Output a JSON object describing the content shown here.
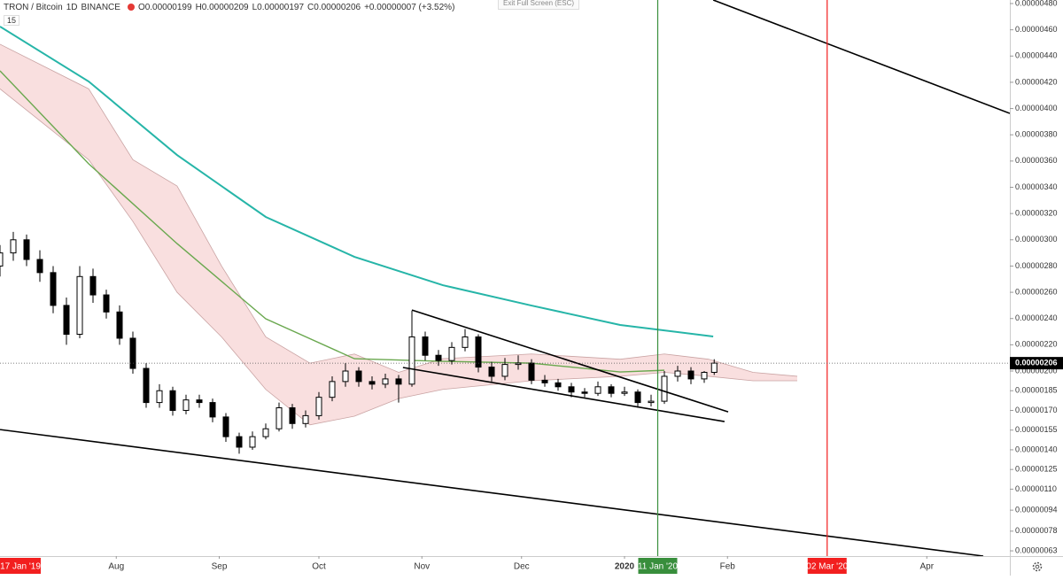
{
  "chart_data": {
    "type": "candlestick",
    "title": "TRON / Bitcoin",
    "interval": "1D",
    "exchange": "BINANCE",
    "ohlc_header": {
      "open": "O0.00000199",
      "high": "H0.00000209",
      "low": "L0.00000197",
      "close": "C0.00000206",
      "change": "+0.00000007 (+3.52%)"
    },
    "indicator_count": "15",
    "exit_button": "Exit Full Screen (ESC)",
    "left_date_label": "17 Jan '19",
    "xlim": [
      0,
      304
    ],
    "ylim": [
      5.9e-07,
      4.827e-06
    ],
    "xticks": [
      {
        "value": 35,
        "label": "Aug"
      },
      {
        "value": 66,
        "label": "Sep"
      },
      {
        "value": 96,
        "label": "Oct"
      },
      {
        "value": 127,
        "label": "Nov"
      },
      {
        "value": 157,
        "label": "Dec"
      },
      {
        "value": 188,
        "label": "2020"
      },
      {
        "value": 219,
        "label": "Feb"
      },
      {
        "value": 279,
        "label": "Apr"
      }
    ],
    "yticks": [
      {
        "value": 4.8e-06,
        "label": "0.00000480"
      },
      {
        "value": 4.6e-06,
        "label": "0.00000460"
      },
      {
        "value": 4.4e-06,
        "label": "0.00000440"
      },
      {
        "value": 4.2e-06,
        "label": "0.00000420"
      },
      {
        "value": 4e-06,
        "label": "0.00000400"
      },
      {
        "value": 3.8e-06,
        "label": "0.00000380"
      },
      {
        "value": 3.6e-06,
        "label": "0.00000360"
      },
      {
        "value": 3.4e-06,
        "label": "0.00000340"
      },
      {
        "value": 3.2e-06,
        "label": "0.00000320"
      },
      {
        "value": 3e-06,
        "label": "0.00000300"
      },
      {
        "value": 2.8e-06,
        "label": "0.00000280"
      },
      {
        "value": 2.6e-06,
        "label": "0.00000260"
      },
      {
        "value": 2.4e-06,
        "label": "0.00000240"
      },
      {
        "value": 2.2e-06,
        "label": "0.00000220"
      },
      {
        "value": 2e-06,
        "label": "0.00000200"
      },
      {
        "value": 1.85e-06,
        "label": "0.00000185"
      },
      {
        "value": 1.7e-06,
        "label": "0.00000170"
      },
      {
        "value": 1.55e-06,
        "label": "0.00000155"
      },
      {
        "value": 1.4e-06,
        "label": "0.00000140"
      },
      {
        "value": 1.25e-06,
        "label": "0.00000125"
      },
      {
        "value": 1.1e-06,
        "label": "0.00000110"
      },
      {
        "value": 9.4e-07,
        "label": "0.00000094"
      },
      {
        "value": 7.8e-07,
        "label": "0.00000078"
      },
      {
        "value": 6.3e-07,
        "label": "0.00000063"
      }
    ],
    "x": [
      0,
      4,
      8,
      12,
      16,
      20,
      24,
      28,
      32,
      36,
      40,
      44,
      48,
      52,
      56,
      60,
      64,
      68,
      72,
      76,
      80,
      84,
      88,
      92,
      96,
      100,
      104,
      108,
      112,
      116,
      120,
      124,
      128,
      132,
      136,
      140,
      144,
      148,
      152,
      156,
      160,
      164,
      168,
      172,
      176,
      180,
      184,
      188,
      192,
      196,
      200,
      204,
      208,
      212,
      215
    ],
    "open": [
      2.8e-06,
      2.9e-06,
      3e-06,
      2.85e-06,
      2.75e-06,
      2.5e-06,
      2.28e-06,
      2.72e-06,
      2.58e-06,
      2.45e-06,
      2.25e-06,
      2.02e-06,
      1.76e-06,
      1.85e-06,
      1.7e-06,
      1.78e-06,
      1.76e-06,
      1.65e-06,
      1.5e-06,
      1.42e-06,
      1.5e-06,
      1.56e-06,
      1.72e-06,
      1.6e-06,
      1.66e-06,
      1.8e-06,
      1.92e-06,
      2e-06,
      1.92e-06,
      1.9e-06,
      1.94e-06,
      1.9e-06,
      2.26e-06,
      2.12e-06,
      2.08e-06,
      2.18e-06,
      2.26e-06,
      2.03e-06,
      1.96e-06,
      2.05e-06,
      2.06e-06,
      1.93e-06,
      1.91e-06,
      1.88e-06,
      1.84e-06,
      1.83e-06,
      1.88e-06,
      1.83e-06,
      1.84e-06,
      1.76e-06,
      1.77e-06,
      1.96e-06,
      2e-06,
      1.94e-06,
      1.99e-06
    ],
    "high": [
      2.96e-06,
      3.06e-06,
      3.04e-06,
      2.92e-06,
      2.8e-06,
      2.56e-06,
      2.8e-06,
      2.78e-06,
      2.62e-06,
      2.5e-06,
      2.3e-06,
      2.06e-06,
      1.9e-06,
      1.88e-06,
      1.82e-06,
      1.82e-06,
      1.79e-06,
      1.68e-06,
      1.53e-06,
      1.54e-06,
      1.6e-06,
      1.76e-06,
      1.75e-06,
      1.7e-06,
      1.84e-06,
      1.96e-06,
      2.06e-06,
      2.03e-06,
      1.96e-06,
      1.98e-06,
      1.97e-06,
      2.46e-06,
      2.3e-06,
      2.16e-06,
      2.22e-06,
      2.32e-06,
      2.28e-06,
      2.07e-06,
      2.1e-06,
      2.12e-06,
      2.09e-06,
      1.97e-06,
      1.94e-06,
      1.91e-06,
      1.87e-06,
      1.92e-06,
      1.9e-06,
      1.88e-06,
      1.86e-06,
      1.82e-06,
      2e-06,
      2.04e-06,
      2.03e-06,
      2e-06,
      2.09e-06
    ],
    "low": [
      2.72e-06,
      2.84e-06,
      2.8e-06,
      2.68e-06,
      2.44e-06,
      2.2e-06,
      2.25e-06,
      2.52e-06,
      2.4e-06,
      2.2e-06,
      1.98e-06,
      1.72e-06,
      1.72e-06,
      1.66e-06,
      1.67e-06,
      1.72e-06,
      1.61e-06,
      1.46e-06,
      1.37e-06,
      1.4e-06,
      1.48e-06,
      1.54e-06,
      1.56e-06,
      1.57e-06,
      1.63e-06,
      1.77e-06,
      1.88e-06,
      1.88e-06,
      1.86e-06,
      1.87e-06,
      1.76e-06,
      1.88e-06,
      2.08e-06,
      2.04e-06,
      2.05e-06,
      2.15e-06,
      1.99e-06,
      1.92e-06,
      1.93e-06,
      2.01e-06,
      1.9e-06,
      1.88e-06,
      1.85e-06,
      1.8e-06,
      1.8e-06,
      1.81e-06,
      1.8e-06,
      1.81e-06,
      1.72e-06,
      1.73e-06,
      1.75e-06,
      1.92e-06,
      1.9e-06,
      1.91e-06,
      1.97e-06
    ],
    "close": [
      2.9e-06,
      3e-06,
      2.85e-06,
      2.75e-06,
      2.5e-06,
      2.28e-06,
      2.72e-06,
      2.58e-06,
      2.45e-06,
      2.25e-06,
      2.02e-06,
      1.76e-06,
      1.85e-06,
      1.7e-06,
      1.78e-06,
      1.76e-06,
      1.65e-06,
      1.5e-06,
      1.42e-06,
      1.5e-06,
      1.56e-06,
      1.72e-06,
      1.6e-06,
      1.66e-06,
      1.8e-06,
      1.92e-06,
      2e-06,
      1.92e-06,
      1.9e-06,
      1.94e-06,
      1.9e-06,
      2.26e-06,
      2.12e-06,
      2.08e-06,
      2.18e-06,
      2.26e-06,
      2.03e-06,
      1.96e-06,
      2.05e-06,
      2.06e-06,
      1.93e-06,
      1.91e-06,
      1.88e-06,
      1.84e-06,
      1.83e-06,
      1.88e-06,
      1.83e-06,
      1.84e-06,
      1.76e-06,
      1.77e-06,
      1.96e-06,
      2e-06,
      1.94e-06,
      1.99e-06,
      2.06e-06
    ],
    "up_color": "#ffffff",
    "down_color": "#000000",
    "cloud": {
      "color": "#f8d7d7",
      "edge_color": "#c9a3a3",
      "x": [
        0,
        26.7,
        40,
        53.3,
        66.7,
        80,
        93.3,
        106.7,
        120,
        133.3,
        160,
        186.7,
        200,
        213.3,
        226.7,
        240
      ],
      "upper": [
        4.49e-06,
        4.15e-06,
        3.61e-06,
        3.41e-06,
        2.8e-06,
        2.26e-06,
        2.06e-06,
        2.13e-06,
        1.99e-06,
        2.094e-06,
        2.13e-06,
        2.09e-06,
        2.13e-06,
        2.09e-06,
        1.99e-06,
        1.96e-06
      ],
      "lower": [
        4.15e-06,
        3.61e-06,
        3.14e-06,
        2.6e-06,
        2.26e-06,
        1.86e-06,
        1.59e-06,
        1.656e-06,
        1.79e-06,
        1.86e-06,
        1.926e-06,
        1.96e-06,
        1.99e-06,
        1.96e-06,
        1.926e-06,
        1.926e-06
      ]
    },
    "series": [
      {
        "color": "#26b5a8",
        "x": [
          0,
          26.7,
          53.3,
          80,
          106.7,
          133.3,
          160,
          186.7,
          214.7
        ],
        "values": [
          4.625e-06,
          4.206e-06,
          3.646e-06,
          3.174e-06,
          2.87e-06,
          2.654e-06,
          2.499e-06,
          2.351e-06,
          2.263e-06
        ]
      },
      {
        "color": "#6aa84f",
        "x": [
          0,
          26.7,
          53.3,
          80,
          106.7,
          133.3,
          160,
          186.7,
          200
        ],
        "values": [
          4.287e-06,
          3.579e-06,
          2.971e-06,
          2.398e-06,
          2.094e-06,
          2.074e-06,
          2.06e-06,
          1.993e-06,
          2.006e-06
        ]
      }
    ],
    "trendlines": [
      {
        "color": "#000000",
        "x": [
          124,
          219.2
        ],
        "values": [
          2.465e-06,
          1.689e-06
        ]
      },
      {
        "color": "#000000",
        "x": [
          121.3,
          218.1
        ],
        "values": [
          2.027e-06,
          1.615e-06
        ]
      },
      {
        "color": "#000000",
        "x": [
          0,
          296
        ],
        "values": [
          1.554e-06,
          5.9e-07
        ]
      },
      {
        "color": "#000000",
        "x": [
          214.7,
          304
        ],
        "values": [
          4.827e-06,
          3.963e-06
        ]
      }
    ],
    "vlines": [
      {
        "x": 198,
        "label": "11 Jan '20",
        "color": "#388e3c"
      },
      {
        "x": 249,
        "label": "02 Mar '20",
        "color": "#f21f1f"
      }
    ],
    "last_price": {
      "value": 2.06e-06,
      "label": "0.00000206"
    }
  }
}
